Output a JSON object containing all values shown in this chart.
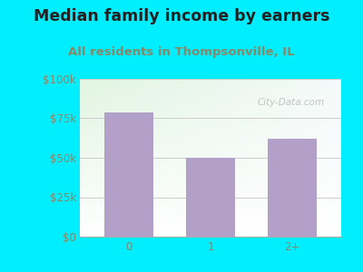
{
  "title": "Median family income by earners",
  "subtitle": "All residents in Thompsonville, IL",
  "categories": [
    "0",
    "1",
    "2+"
  ],
  "values": [
    79000,
    50000,
    62000
  ],
  "bar_color": "#b3a0c8",
  "background_color": "#00eeff",
  "plot_bg_color_top_right": "#e8f4e8",
  "plot_bg_color_bottom_left": "#f8fff8",
  "title_color": "#222222",
  "subtitle_color": "#888866",
  "tick_color": "#888866",
  "grid_color": "#cccccc",
  "ylim": [
    0,
    100000
  ],
  "yticks": [
    0,
    25000,
    50000,
    75000,
    100000
  ],
  "ytick_labels": [
    "$0",
    "$25k",
    "$50k",
    "$75k",
    "$100k"
  ],
  "title_fontsize": 12.5,
  "subtitle_fontsize": 9.5,
  "tick_fontsize": 8.5,
  "watermark": "City-Data.com"
}
